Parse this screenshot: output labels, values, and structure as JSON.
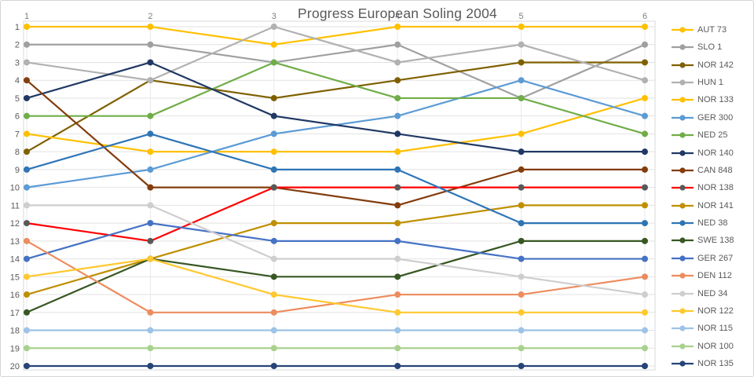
{
  "title": "Progress European Soling 2004",
  "chart_data": {
    "type": "line",
    "subtype": "bump-chart-rank-progression",
    "title": "Progress European Soling 2004",
    "x": [
      1,
      2,
      3,
      4,
      5,
      6
    ],
    "x_axis": {
      "position": "top",
      "labels": [
        "1",
        "2",
        "3",
        "4",
        "5",
        "6"
      ]
    },
    "y_axis": {
      "position": "left",
      "labels": [
        "1",
        "2",
        "3",
        "4",
        "5",
        "6",
        "7",
        "8",
        "9",
        "10",
        "11",
        "12",
        "13",
        "14",
        "15",
        "16",
        "17",
        "18",
        "19",
        "20"
      ],
      "min": 1,
      "max": 20,
      "inverted": true
    },
    "grid": true,
    "legend_position": "right",
    "series": [
      {
        "name": "AUT 73",
        "color": "#FFC000",
        "values": [
          1,
          1,
          2,
          1,
          1,
          1
        ]
      },
      {
        "name": "SLO 1",
        "color": "#A0A0A0",
        "values": [
          2,
          2,
          3,
          2,
          5,
          2
        ]
      },
      {
        "name": "NOR 142",
        "color": "#7F6000",
        "values": [
          8,
          4,
          5,
          4,
          3,
          3
        ]
      },
      {
        "name": "HUN 1",
        "color": "#B1B1B1",
        "values": [
          3,
          4,
          1,
          3,
          2,
          4
        ]
      },
      {
        "name": "NOR 133",
        "color": "#FFC000",
        "values": [
          7,
          8,
          8,
          8,
          7,
          5
        ]
      },
      {
        "name": "GER 300",
        "color": "#5B9BD5",
        "values": [
          10,
          9,
          7,
          6,
          4,
          6
        ]
      },
      {
        "name": "NED 25",
        "color": "#70AD47",
        "values": [
          6,
          6,
          3,
          5,
          5,
          7
        ]
      },
      {
        "name": "NOR 140",
        "color": "#203864",
        "values": [
          5,
          3,
          6,
          7,
          8,
          8
        ]
      },
      {
        "name": "CAN 848",
        "color": "#843C0C",
        "values": [
          4,
          10,
          10,
          11,
          9,
          9
        ]
      },
      {
        "name": "NOR 138",
        "color": "#FF0000",
        "marker_color": "#595959",
        "values": [
          12,
          13,
          10,
          10,
          10,
          10
        ]
      },
      {
        "name": "NOR 141",
        "color": "#BF8F00",
        "values": [
          16,
          14,
          12,
          12,
          11,
          11
        ]
      },
      {
        "name": "NED 38",
        "color": "#2E75B6",
        "values": [
          9,
          7,
          9,
          9,
          12,
          12
        ]
      },
      {
        "name": "SWE 138",
        "color": "#385723",
        "values": [
          17,
          14,
          15,
          15,
          13,
          13
        ]
      },
      {
        "name": "GER 267",
        "color": "#4472C4",
        "values": [
          14,
          12,
          13,
          13,
          14,
          14
        ]
      },
      {
        "name": "DEN 112",
        "color": "#ED8C5E",
        "values": [
          13,
          17,
          17,
          16,
          16,
          15
        ]
      },
      {
        "name": "NED 34",
        "color": "#CFCDCD",
        "values": [
          11,
          11,
          14,
          14,
          15,
          16
        ]
      },
      {
        "name": "NOR 122",
        "color": "#FFC82E",
        "values": [
          15,
          14,
          16,
          17,
          17,
          17
        ]
      },
      {
        "name": "NOR 115",
        "color": "#9DC3E6",
        "values": [
          18,
          18,
          18,
          18,
          18,
          18
        ]
      },
      {
        "name": "NOR 100",
        "color": "#A9D18E",
        "values": [
          19,
          19,
          19,
          19,
          19,
          19
        ]
      },
      {
        "name": "NOR 135",
        "color": "#264478",
        "values": [
          20,
          20,
          20,
          20,
          20,
          20
        ]
      }
    ],
    "style": {
      "grid_color_h": "#e2e2e2",
      "grid_color_v": "#e9e9e9",
      "border_color": "#d9d9d9",
      "axis_label_color_top": "#7f7f7f",
      "axis_label_color_left": "#595959",
      "title_color": "#595959"
    }
  }
}
